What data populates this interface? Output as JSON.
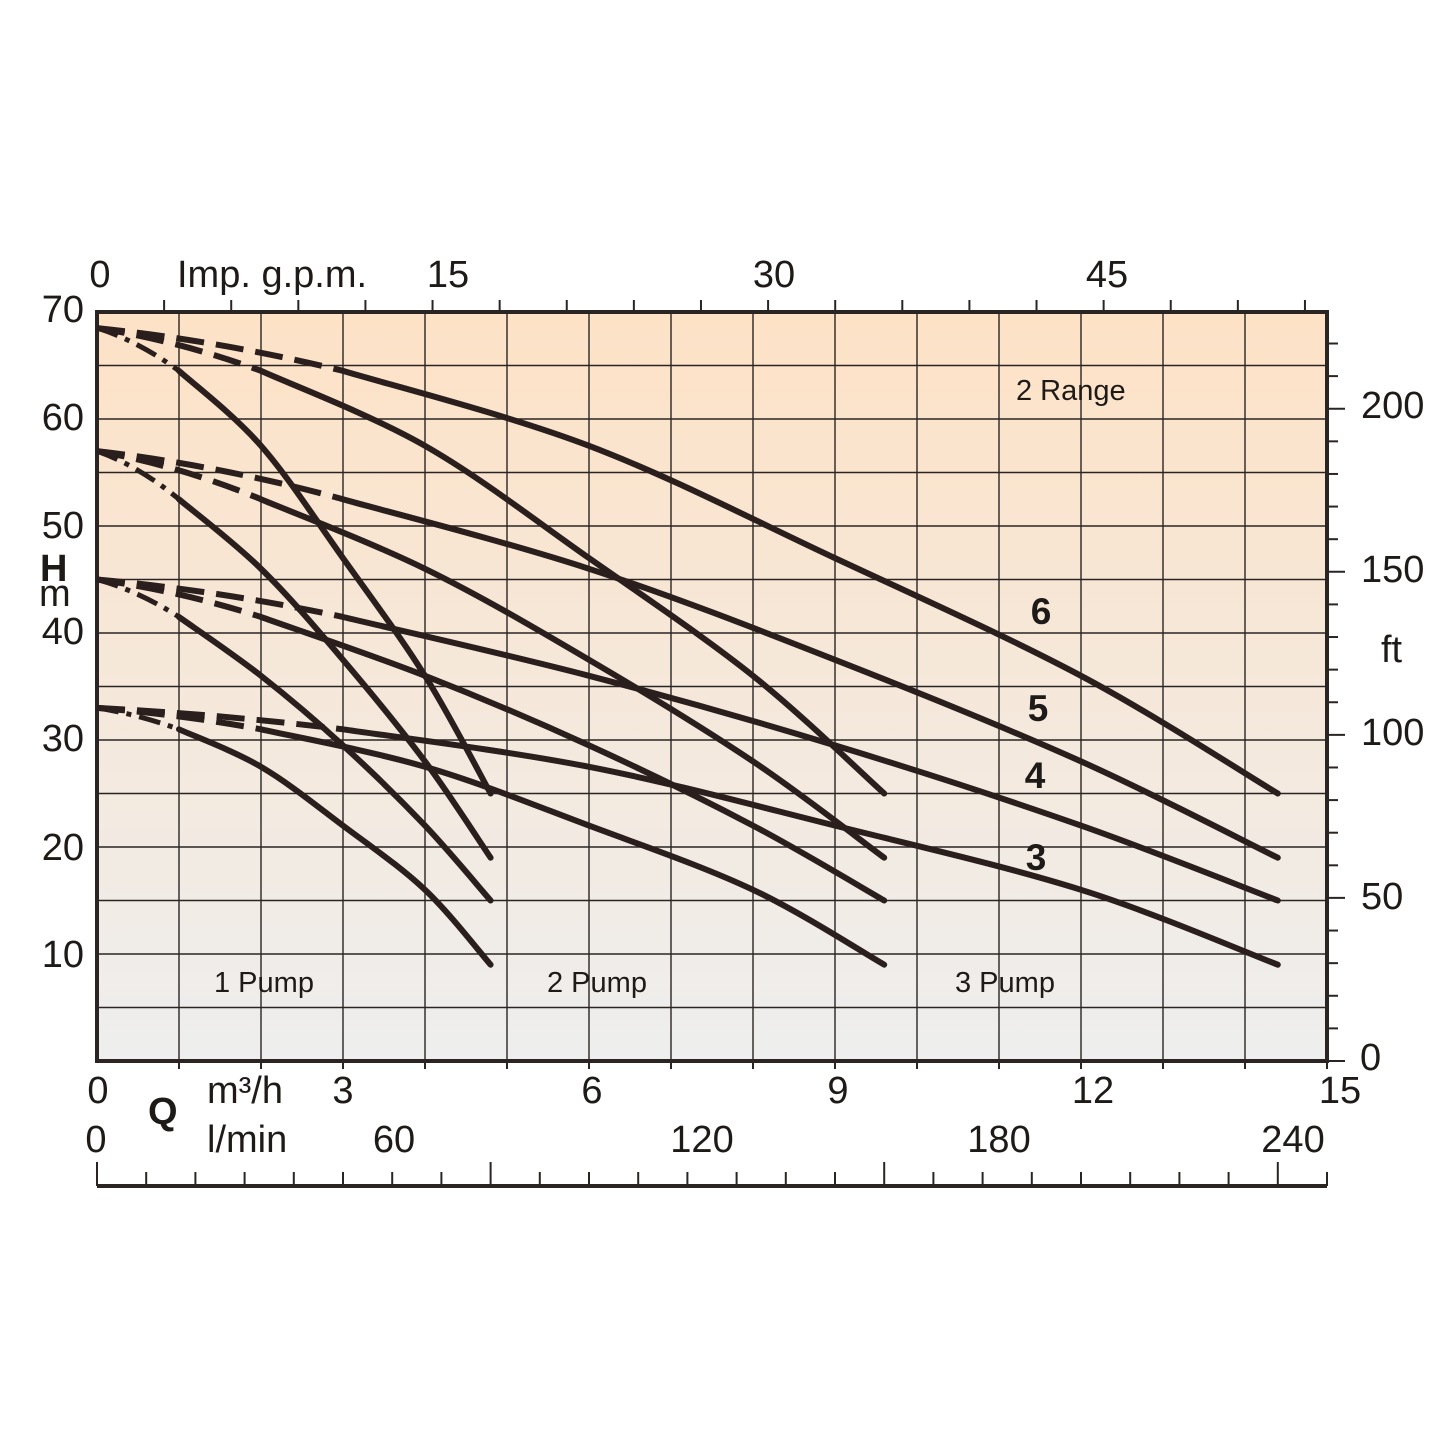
{
  "chart_data": {
    "type": "line",
    "title": "",
    "colors": {
      "background_top": "#fde2c6",
      "background_bottom": "#eeeeee",
      "line": "#2a1f1d"
    },
    "x_axis": {
      "label": "m³/h",
      "ticks": [
        "0",
        "3",
        "6",
        "9",
        "12",
        "15"
      ],
      "range": [
        0,
        15
      ]
    },
    "x_axis_lmin": {
      "label": "l/min",
      "ticks": [
        "0",
        "60",
        "120",
        "180",
        "240"
      ]
    },
    "x_axis_top": {
      "label": "Imp. g.p.m.",
      "ticks": [
        "0",
        "15",
        "30",
        "45"
      ]
    },
    "y_axis": {
      "label": "H",
      "unit": "m",
      "ticks": [
        "10",
        "20",
        "30",
        "40",
        "50",
        "60",
        "70"
      ],
      "range": [
        0,
        70
      ]
    },
    "y_axis_right": {
      "label": "ft",
      "ticks": [
        "0",
        "50",
        "100",
        "150",
        "200"
      ]
    },
    "q_label": "Q",
    "grid": true,
    "region_labels": [
      "2 Range",
      "1 Pump",
      "2 Pump",
      "3 Pump"
    ],
    "curve_labels": [
      "6",
      "5",
      "4",
      "3"
    ],
    "series": [
      {
        "name": "6",
        "pumps": 1,
        "x": [
          0,
          1,
          2,
          3,
          4,
          4.8
        ],
        "y": [
          68.5,
          64.5,
          57.5,
          47,
          36,
          25
        ]
      },
      {
        "name": "6",
        "pumps": 2,
        "x": [
          0,
          2,
          4,
          6,
          8,
          9.6
        ],
        "y": [
          68.5,
          64.5,
          57.5,
          47,
          36,
          25
        ]
      },
      {
        "name": "6",
        "pumps": 3,
        "x": [
          0,
          3,
          6,
          9,
          12,
          14.4
        ],
        "y": [
          68.5,
          64.5,
          57.5,
          47,
          36,
          25
        ]
      },
      {
        "name": "5",
        "pumps": 1,
        "x": [
          0,
          1,
          2,
          3,
          4,
          4.8
        ],
        "y": [
          57,
          52.5,
          46,
          37.5,
          28,
          19
        ]
      },
      {
        "name": "5",
        "pumps": 2,
        "x": [
          0,
          2,
          4,
          6,
          8,
          9.6
        ],
        "y": [
          57,
          52.5,
          46,
          37.5,
          28,
          19
        ]
      },
      {
        "name": "5",
        "pumps": 3,
        "x": [
          0,
          3,
          6,
          9,
          12,
          14.4
        ],
        "y": [
          57,
          52.5,
          46,
          37.5,
          28,
          19
        ]
      },
      {
        "name": "4",
        "pumps": 1,
        "x": [
          0,
          1,
          2,
          3,
          4,
          4.8
        ],
        "y": [
          45,
          41.5,
          36,
          29.5,
          22,
          15
        ]
      },
      {
        "name": "4",
        "pumps": 2,
        "x": [
          0,
          2,
          4,
          6,
          8,
          9.6
        ],
        "y": [
          45,
          41.5,
          36,
          29.5,
          22,
          15
        ]
      },
      {
        "name": "4",
        "pumps": 3,
        "x": [
          0,
          3,
          6,
          9,
          12,
          14.4
        ],
        "y": [
          45,
          41.5,
          36,
          29.5,
          22,
          15
        ]
      },
      {
        "name": "3",
        "pumps": 1,
        "x": [
          0,
          1,
          2,
          3,
          4,
          4.8
        ],
        "y": [
          33,
          31,
          27.5,
          22,
          16,
          9
        ]
      },
      {
        "name": "3",
        "pumps": 2,
        "x": [
          0,
          2,
          4,
          6,
          8,
          9.6
        ],
        "y": [
          33,
          31,
          27.5,
          22,
          16,
          9
        ]
      },
      {
        "name": "3",
        "pumps": 3,
        "x": [
          0,
          3,
          6,
          9,
          12,
          14.4
        ],
        "y": [
          33,
          31,
          27.5,
          22,
          16,
          9
        ]
      }
    ]
  }
}
